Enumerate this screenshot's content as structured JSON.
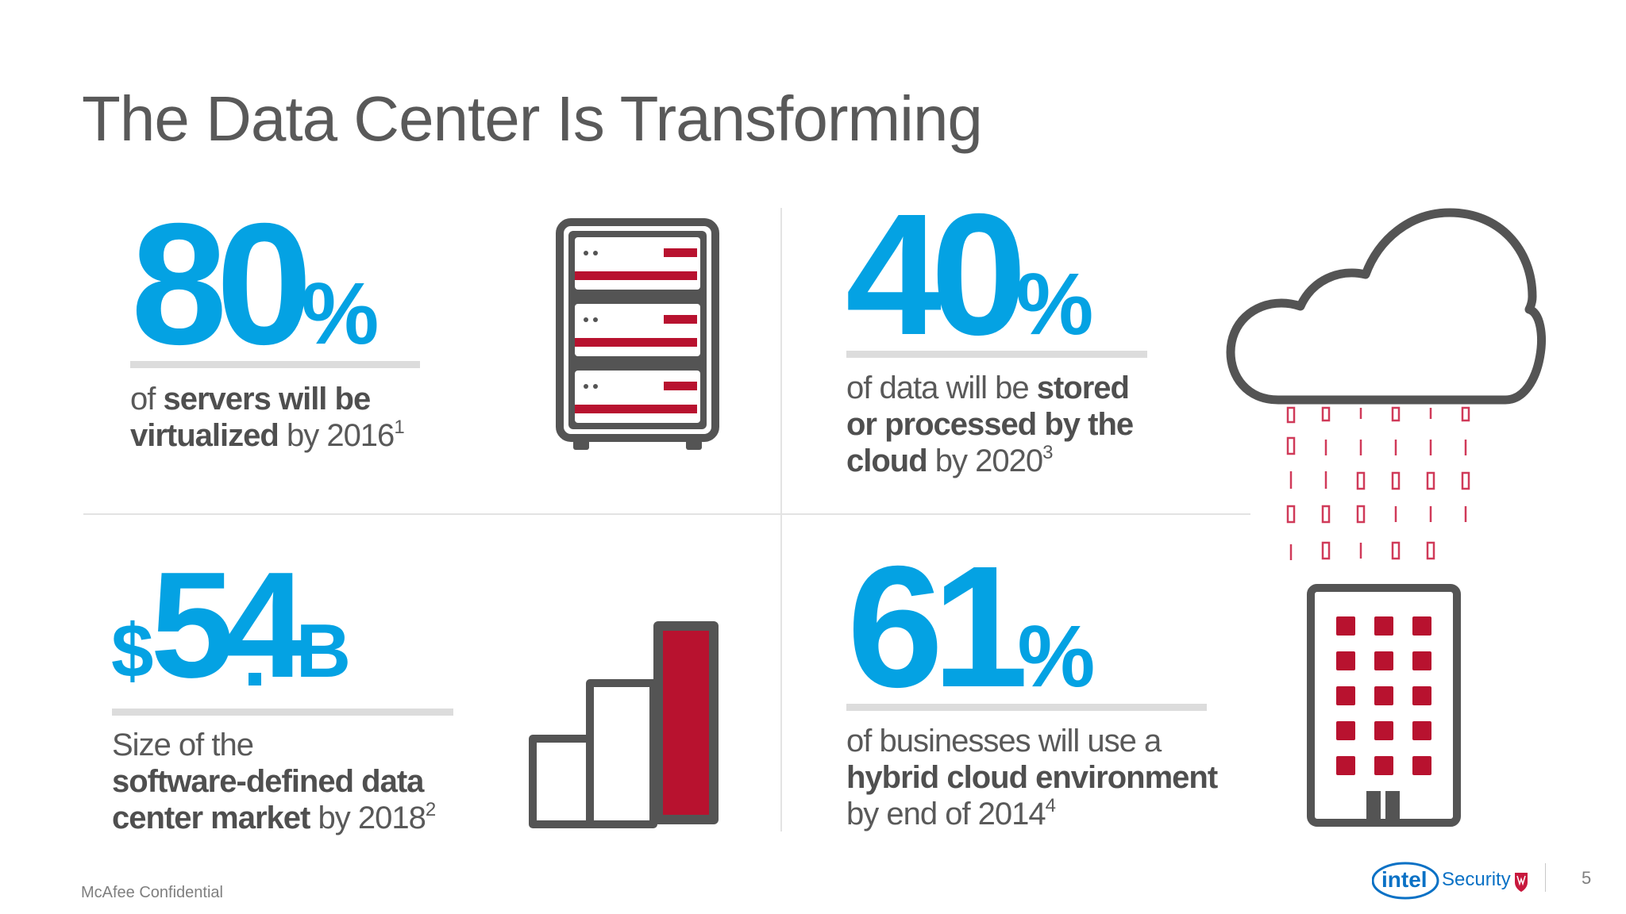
{
  "slide": {
    "title": "The Data Center Is Transforming",
    "footer_left": "McAfee Confidential",
    "page_number": "5"
  },
  "stats": [
    {
      "number": "80",
      "unit": "%",
      "lines": [
        [
          {
            "t": "of "
          },
          {
            "t": "servers will be",
            "b": true
          }
        ],
        [
          {
            "t": "virtualized",
            "b": true
          },
          {
            "t": " by 2016"
          },
          {
            "t": "1",
            "sup": true
          }
        ]
      ]
    },
    {
      "number": "40",
      "unit": "%",
      "lines": [
        [
          {
            "t": "of data will be "
          },
          {
            "t": "stored",
            "b": true
          }
        ],
        [
          {
            "t": "or processed by the",
            "b": true
          }
        ],
        [
          {
            "t": "cloud",
            "b": true
          },
          {
            "t": " by 2020"
          },
          {
            "t": "3",
            "sup": true
          }
        ]
      ]
    },
    {
      "prefix": "$",
      "number": "54",
      "decimal": ".",
      "unit": "B",
      "lines": [
        [
          {
            "t": "Size of the"
          }
        ],
        [
          {
            "t": "software-defined data",
            "b": true
          }
        ],
        [
          {
            "t": "center market",
            "b": true
          },
          {
            "t": " by 2018"
          },
          {
            "t": "2",
            "sup": true
          }
        ]
      ]
    },
    {
      "number": "61",
      "unit": "%",
      "lines": [
        [
          {
            "t": "of businesses will use a"
          }
        ],
        [
          {
            "t": "hybrid cloud environment",
            "b": true
          }
        ],
        [
          {
            "t": "by end of 2014"
          },
          {
            "t": "4",
            "sup": true
          }
        ]
      ]
    }
  ],
  "icons": {
    "server": "server-rack-icon",
    "bars": "bar-chart-icon",
    "cloud": "cloud-data-rain-icon",
    "building": "office-building-icon"
  },
  "logo": {
    "brand": "intel",
    "product": "Security"
  },
  "colors": {
    "blue": "#04a2e3",
    "red": "#b8122f",
    "gray": "#595959",
    "outline": "#545454"
  }
}
